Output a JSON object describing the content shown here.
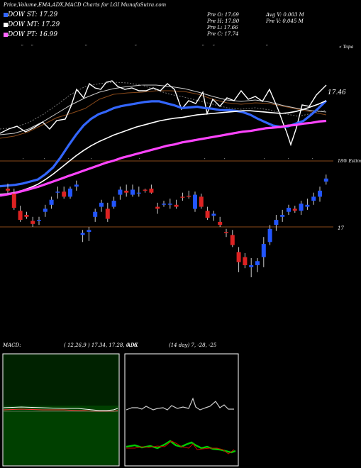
{
  "header": {
    "title": "Price,Volume,EMA,ADX,MACD Charts for LGI MunafaSutra.com",
    "stats_left": [
      "Pre   O: 17.69",
      "Pre   H: 17.80",
      "Pre   L: 17.66",
      "Pre   C: 17.74"
    ],
    "stats_right": [
      "Avg V: 0.003 M",
      "Pre   V: 0.045 M"
    ],
    "ema_last_label": "17.46",
    "price_line_label": "17",
    "top_label": "« Topa",
    "axis_label": "18® Estim"
  },
  "legend": [
    {
      "label": "DOW ST: 17.29",
      "color": "#3366ff"
    },
    {
      "label": "DOW MT: 17.29",
      "color": "#ffffff"
    },
    {
      "label": "DOW PT: 16.99",
      "color": "#ff66ff"
    }
  ],
  "macd": {
    "title": "MACD:",
    "params": "( 12,26,9 ) 17.34,  17.28,  0.06"
  },
  "adx": {
    "title": "ADX",
    "params": "(14  day) 7,  -28,  -25"
  },
  "chart_data": [
    {
      "type": "line",
      "title": "EMA / Price panel",
      "series": [
        {
          "name": "DOW ST",
          "values": [
            16.02,
            16.03,
            16.04,
            16.06,
            16.09,
            16.12,
            16.2,
            16.3,
            16.45,
            16.62,
            16.78,
            16.92,
            17.02,
            17.09,
            17.13,
            17.18,
            17.21,
            17.23,
            17.25,
            17.27,
            17.28,
            17.28,
            17.25,
            17.22,
            17.18,
            17.19,
            17.2,
            17.18,
            17.17,
            17.15,
            17.15,
            17.14,
            17.12,
            17.08,
            17.02,
            16.97,
            16.92,
            16.9,
            16.91,
            16.95,
            16.99,
            17.08,
            17.18,
            17.29
          ]
        },
        {
          "name": "DOW MT",
          "values": [
            15.9,
            15.91,
            15.93,
            15.96,
            16.0,
            16.05,
            16.12,
            16.2,
            16.29,
            16.38,
            16.47,
            16.55,
            16.62,
            16.68,
            16.73,
            16.78,
            16.82,
            16.86,
            16.9,
            16.93,
            16.96,
            16.99,
            17.01,
            17.03,
            17.04,
            17.06,
            17.08,
            17.09,
            17.1,
            17.11,
            17.12,
            17.13,
            17.14,
            17.14,
            17.13,
            17.12,
            17.11,
            17.1,
            17.11,
            17.13,
            17.16,
            17.2,
            17.24,
            17.29
          ]
        },
        {
          "name": "DOW PT",
          "values": [
            15.88,
            15.9,
            15.92,
            15.95,
            15.98,
            16.01,
            16.05,
            16.09,
            16.13,
            16.17,
            16.21,
            16.25,
            16.29,
            16.33,
            16.37,
            16.4,
            16.44,
            16.47,
            16.5,
            16.53,
            16.56,
            16.59,
            16.62,
            16.64,
            16.67,
            16.69,
            16.71,
            16.73,
            16.75,
            16.77,
            16.79,
            16.81,
            16.83,
            16.84,
            16.86,
            16.88,
            16.89,
            16.9,
            16.92,
            16.93,
            16.95,
            16.96,
            16.98,
            16.99
          ]
        }
      ]
    },
    {
      "type": "candlestick",
      "title": "Candles",
      "candles": [
        {
          "o": 17.38,
          "h": 17.43,
          "l": 17.33,
          "c": 17.36
        },
        {
          "o": 17.33,
          "h": 17.38,
          "l": 17.17,
          "c": 17.19
        },
        {
          "o": 17.16,
          "h": 17.21,
          "l": 17.05,
          "c": 17.07
        },
        {
          "o": 17.12,
          "h": 17.15,
          "l": 17.08,
          "c": 17.1
        },
        {
          "o": 17.06,
          "h": 17.1,
          "l": 17.0,
          "c": 17.03
        },
        {
          "o": 17.06,
          "h": 17.1,
          "l": 17.02,
          "c": 17.07
        },
        {
          "o": 17.15,
          "h": 17.22,
          "l": 17.1,
          "c": 17.18
        },
        {
          "o": 17.22,
          "h": 17.3,
          "l": 17.18,
          "c": 17.27
        },
        {
          "o": 17.34,
          "h": 17.4,
          "l": 17.28,
          "c": 17.35
        },
        {
          "o": 17.35,
          "h": 17.4,
          "l": 17.28,
          "c": 17.3
        },
        {
          "o": 17.3,
          "h": 17.4,
          "l": 17.28,
          "c": 17.38
        },
        {
          "o": 17.4,
          "h": 17.46,
          "l": 17.36,
          "c": 17.42
        },
        {
          "o": 16.92,
          "h": 16.97,
          "l": 16.85,
          "c": 16.94
        },
        {
          "o": 16.95,
          "h": 17.0,
          "l": 16.86,
          "c": 16.97
        },
        {
          "o": 17.1,
          "h": 17.18,
          "l": 17.05,
          "c": 17.15
        },
        {
          "o": 17.2,
          "h": 17.27,
          "l": 17.15,
          "c": 17.24
        },
        {
          "o": 17.18,
          "h": 17.24,
          "l": 17.05,
          "c": 17.08
        },
        {
          "o": 17.2,
          "h": 17.3,
          "l": 17.18,
          "c": 17.26
        },
        {
          "o": 17.32,
          "h": 17.4,
          "l": 17.27,
          "c": 17.37
        },
        {
          "o": 17.36,
          "h": 17.42,
          "l": 17.3,
          "c": 17.34
        },
        {
          "o": 17.32,
          "h": 17.42,
          "l": 17.3,
          "c": 17.37
        },
        {
          "o": 17.34,
          "h": 17.4,
          "l": 17.3,
          "c": 17.34
        },
        {
          "o": 17.37,
          "h": 17.38,
          "l": 17.34,
          "c": 17.36
        },
        {
          "o": 17.38,
          "h": 17.42,
          "l": 17.33,
          "c": 17.34
        },
        {
          "o": 17.2,
          "h": 17.24,
          "l": 17.13,
          "c": 17.18
        },
        {
          "o": 17.22,
          "h": 17.26,
          "l": 17.2,
          "c": 17.23
        },
        {
          "o": 17.22,
          "h": 17.28,
          "l": 17.18,
          "c": 17.23
        },
        {
          "o": 17.22,
          "h": 17.27,
          "l": 17.18,
          "c": 17.2
        },
        {
          "o": 17.3,
          "h": 17.34,
          "l": 17.26,
          "c": 17.29
        },
        {
          "o": 17.31,
          "h": 17.36,
          "l": 17.28,
          "c": 17.3
        },
        {
          "o": 17.18,
          "h": 17.35,
          "l": 17.15,
          "c": 17.32
        },
        {
          "o": 17.3,
          "h": 17.33,
          "l": 17.18,
          "c": 17.2
        },
        {
          "o": 17.16,
          "h": 17.2,
          "l": 17.07,
          "c": 17.09
        },
        {
          "o": 17.11,
          "h": 17.16,
          "l": 17.06,
          "c": 17.13
        },
        {
          "o": 17.05,
          "h": 17.1,
          "l": 17.0,
          "c": 17.02
        },
        {
          "o": 16.95,
          "h": 16.98,
          "l": 16.9,
          "c": 16.94
        },
        {
          "o": 16.92,
          "h": 16.97,
          "l": 16.8,
          "c": 16.82
        },
        {
          "o": 16.75,
          "h": 16.8,
          "l": 16.55,
          "c": 16.65
        },
        {
          "o": 16.7,
          "h": 16.74,
          "l": 16.59,
          "c": 16.62
        },
        {
          "o": 16.6,
          "h": 16.69,
          "l": 16.5,
          "c": 16.62
        },
        {
          "o": 16.62,
          "h": 16.69,
          "l": 16.55,
          "c": 16.66
        },
        {
          "o": 16.7,
          "h": 16.9,
          "l": 16.6,
          "c": 16.83
        },
        {
          "o": 16.85,
          "h": 17.02,
          "l": 16.82,
          "c": 16.98
        },
        {
          "o": 17.02,
          "h": 17.12,
          "l": 16.96,
          "c": 17.07
        },
        {
          "o": 17.1,
          "h": 17.17,
          "l": 17.05,
          "c": 17.12
        },
        {
          "o": 17.15,
          "h": 17.22,
          "l": 17.12,
          "c": 17.19
        },
        {
          "o": 17.18,
          "h": 17.21,
          "l": 17.14,
          "c": 17.16
        },
        {
          "o": 17.16,
          "h": 17.26,
          "l": 17.12,
          "c": 17.23
        },
        {
          "o": 17.2,
          "h": 17.28,
          "l": 17.17,
          "c": 17.22
        },
        {
          "o": 17.26,
          "h": 17.34,
          "l": 17.22,
          "c": 17.3
        },
        {
          "o": 17.3,
          "h": 17.4,
          "l": 17.25,
          "c": 17.36
        },
        {
          "o": 17.45,
          "h": 17.52,
          "l": 17.42,
          "c": 17.48
        }
      ]
    }
  ]
}
